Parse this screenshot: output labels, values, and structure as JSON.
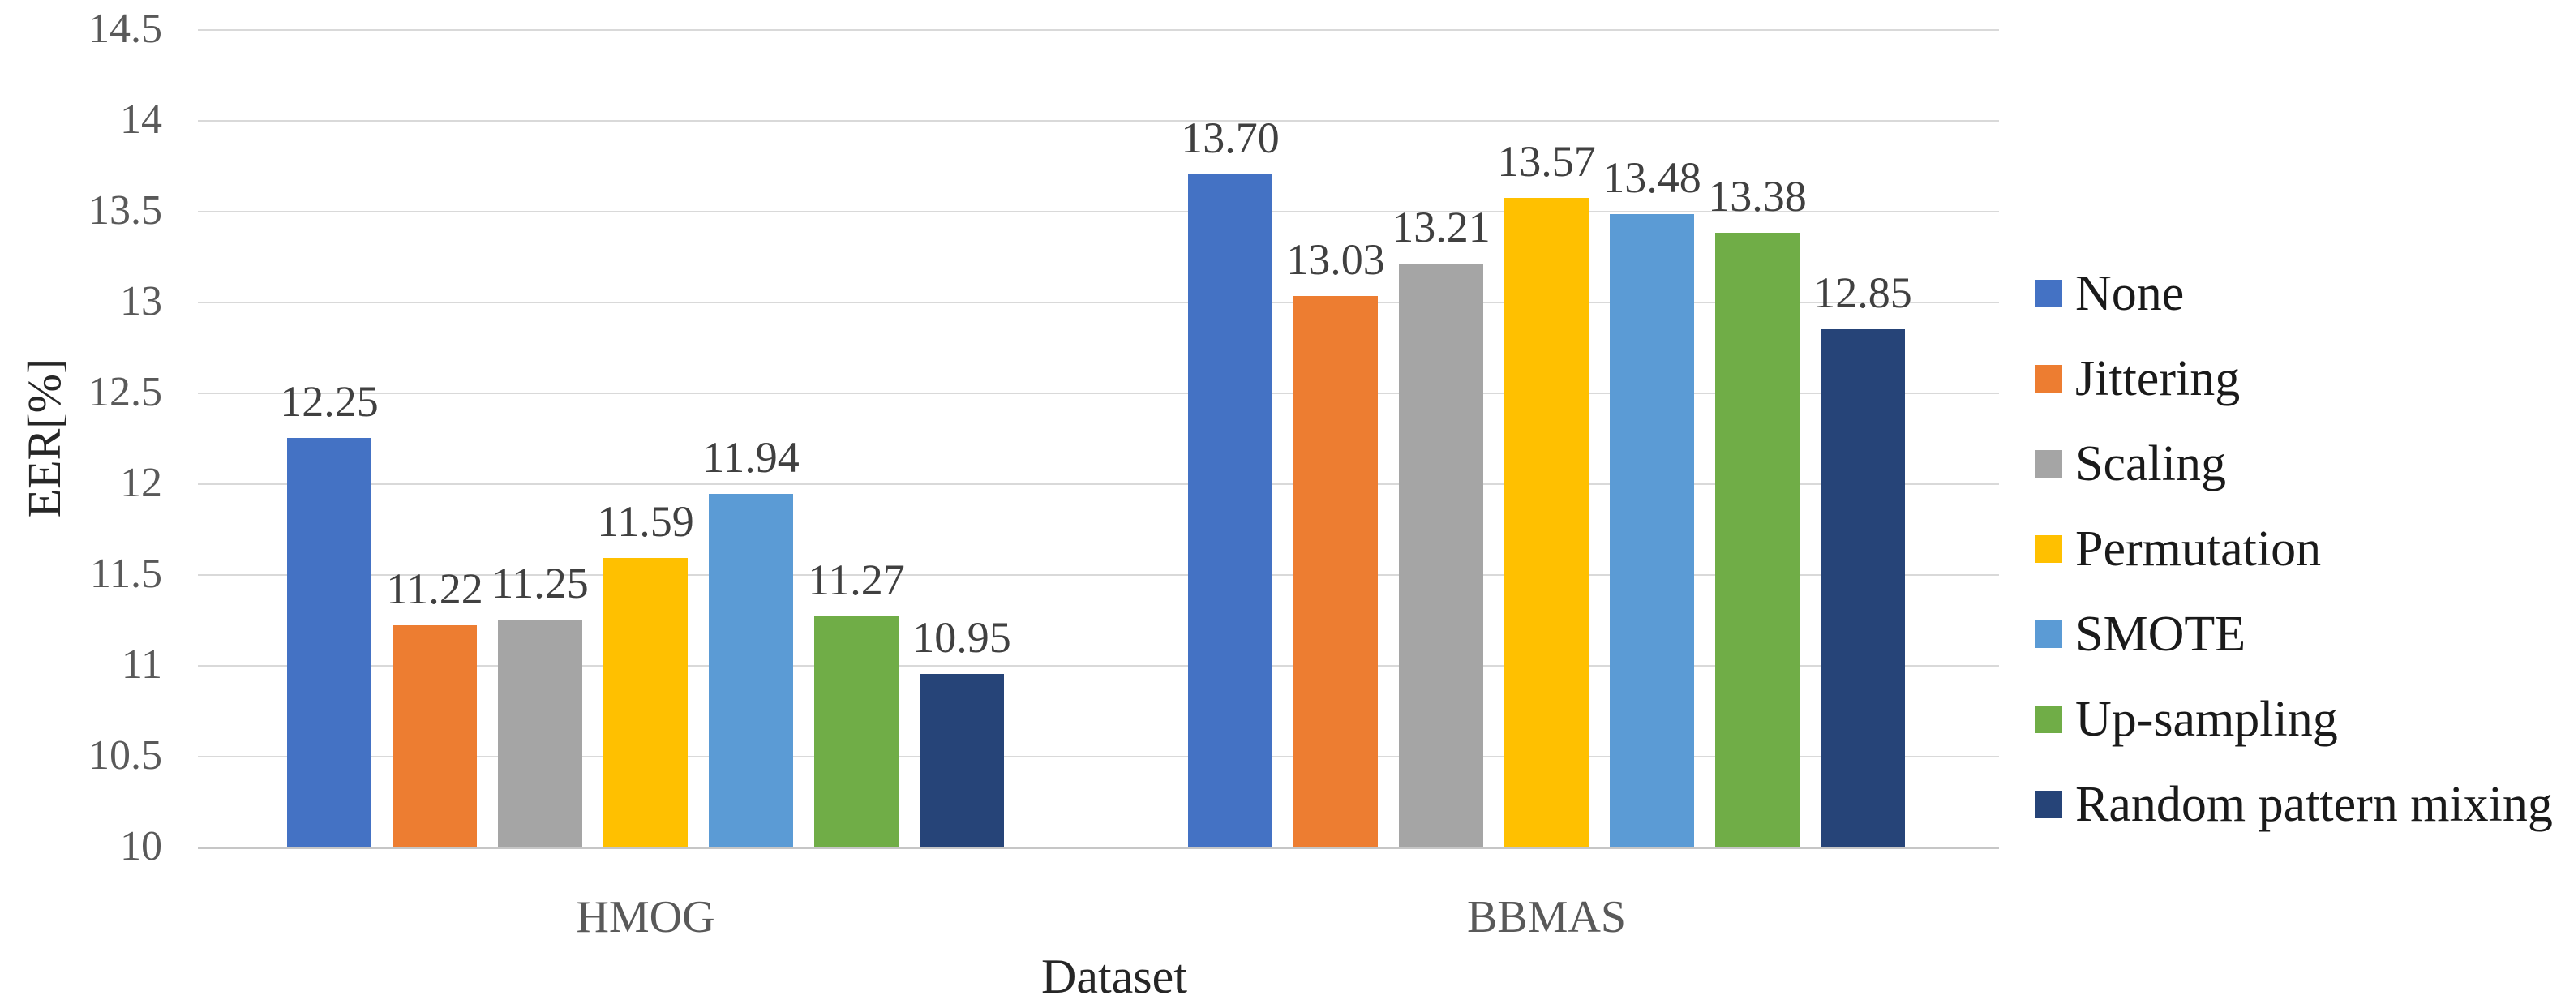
{
  "chart_data": {
    "type": "bar",
    "title": "",
    "xlabel": "Dataset",
    "ylabel": "EER[%]",
    "categories": [
      "HMOG",
      "BBMAS"
    ],
    "series": [
      {
        "name": "None",
        "color": "#4472C4",
        "values": [
          12.25,
          13.7
        ],
        "labels": [
          "12.25",
          "13.70"
        ]
      },
      {
        "name": "Jittering",
        "color": "#ED7D31",
        "values": [
          11.22,
          13.03
        ],
        "labels": [
          "11.22",
          "13.03"
        ]
      },
      {
        "name": "Scaling",
        "color": "#A5A5A5",
        "values": [
          11.25,
          13.21
        ],
        "labels": [
          "11.25",
          "13.21"
        ]
      },
      {
        "name": "Permutation",
        "color": "#FFC000",
        "values": [
          11.59,
          13.57
        ],
        "labels": [
          "11.59",
          "13.57"
        ]
      },
      {
        "name": "SMOTE",
        "color": "#5B9BD5",
        "values": [
          11.94,
          13.48
        ],
        "labels": [
          "11.94",
          "13.48"
        ]
      },
      {
        "name": "Up-sampling",
        "color": "#70AD47",
        "values": [
          11.27,
          13.38
        ],
        "labels": [
          "11.27",
          "13.38"
        ]
      },
      {
        "name": "Random pattern mixing",
        "color": "#264478",
        "values": [
          10.95,
          12.85
        ],
        "labels": [
          "10.95",
          "12.85"
        ]
      }
    ],
    "y_axis": {
      "min": 10,
      "max": 14.5,
      "step": 0.5,
      "ticks": [
        "14.5",
        "14",
        "13.5",
        "13",
        "12.5",
        "12",
        "11.5",
        "11",
        "10.5",
        "10"
      ]
    },
    "grid": true,
    "legend_position": "right"
  },
  "style_colors": {
    "background": "#FFFFFF",
    "gridline": "#D9D9D9",
    "axis_line": "#C6C6C6",
    "tick_text": "#595959",
    "category_text": "#595959",
    "data_label_text": "#404040",
    "axis_title_text": "#262626",
    "legend_text": "#1A1A1A"
  }
}
